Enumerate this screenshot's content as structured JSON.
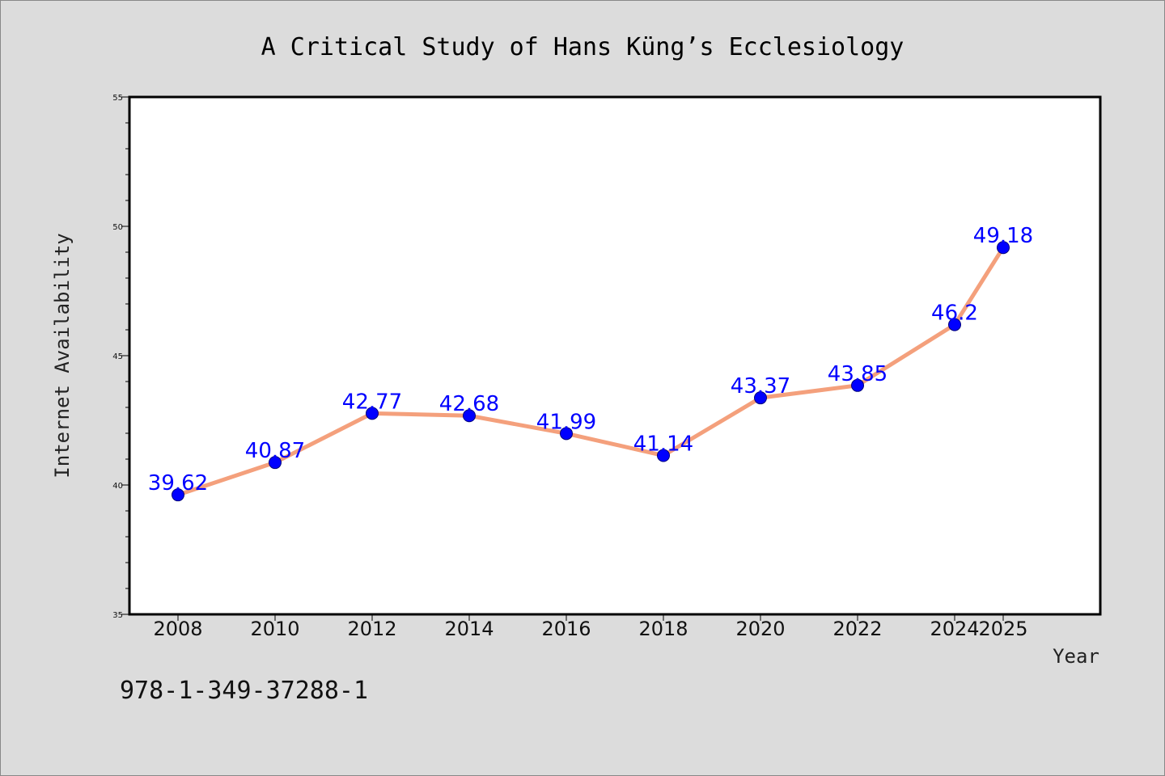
{
  "chart_data": {
    "type": "line",
    "title": "A Critical Study of Hans Küng’s Ecclesiology",
    "xlabel": "Year",
    "ylabel": "Internet Availability",
    "x": [
      "2008",
      "2010",
      "2012",
      "2014",
      "2016",
      "2018",
      "2020",
      "2022",
      "2024",
      "2025"
    ],
    "values": [
      39.62,
      40.87,
      42.77,
      42.68,
      41.99,
      41.14,
      43.37,
      43.85,
      46.2,
      49.18
    ],
    "data_labels": [
      "39.62",
      "40.87",
      "42.77",
      "42.68",
      "41.99",
      "41.14",
      "43.37",
      "43.85",
      "46.2",
      "49.18"
    ],
    "ylim": [
      35,
      55
    ],
    "yticks": [
      "35",
      "40",
      "45",
      "50",
      "55"
    ],
    "grid": false,
    "line_color": "#f4a07c",
    "marker_color": "#0000ff",
    "label_color": "#0000ff",
    "background_color": "#dcdcdc",
    "plot_background": "#ffffff"
  },
  "footer": {
    "isbn": "978-1-349-37288-1"
  }
}
